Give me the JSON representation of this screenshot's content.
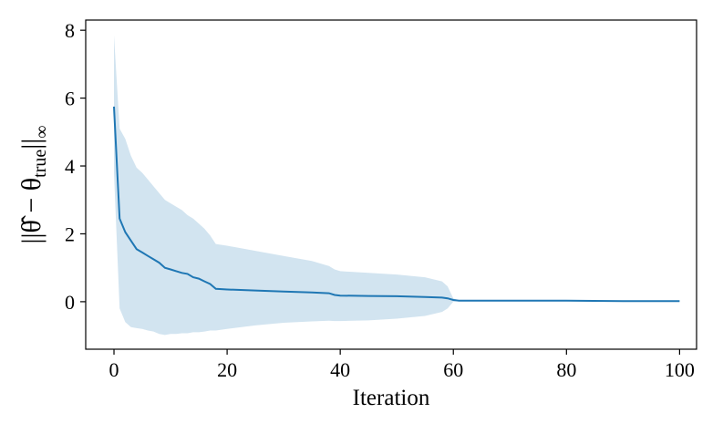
{
  "chart_data": {
    "type": "line",
    "title": "",
    "xlabel": "Iteration",
    "ylabel": {
      "prefix": "||θ̂ − θ",
      "subscript": "true",
      "suffix": "||",
      "norm": "∞"
    },
    "xlim": [
      -5,
      103
    ],
    "ylim": [
      -1.4,
      8.3
    ],
    "xticks": [
      0,
      20,
      40,
      60,
      80,
      100
    ],
    "yticks": [
      0,
      2,
      4,
      6,
      8
    ],
    "grid": false,
    "colors": {
      "line": "#1f77b4",
      "band": "#1f77b4"
    },
    "series": [
      {
        "x": [
          0,
          1,
          2,
          3,
          4,
          5,
          6,
          7,
          8,
          9,
          10,
          11,
          12,
          13,
          14,
          15,
          16,
          17,
          18,
          20,
          25,
          30,
          35,
          38,
          39,
          40,
          45,
          50,
          55,
          58,
          59,
          60,
          61,
          70,
          80,
          90,
          100
        ],
        "mean": [
          5.75,
          2.45,
          2.05,
          1.8,
          1.55,
          1.45,
          1.35,
          1.25,
          1.15,
          1.0,
          0.95,
          0.9,
          0.85,
          0.82,
          0.72,
          0.68,
          0.6,
          0.52,
          0.38,
          0.36,
          0.33,
          0.3,
          0.27,
          0.25,
          0.2,
          0.18,
          0.17,
          0.16,
          0.14,
          0.12,
          0.1,
          0.05,
          0.03,
          0.03,
          0.03,
          0.02,
          0.02
        ],
        "upper": [
          7.85,
          5.1,
          4.8,
          4.3,
          3.95,
          3.8,
          3.6,
          3.4,
          3.2,
          3.0,
          2.9,
          2.8,
          2.7,
          2.55,
          2.45,
          2.3,
          2.15,
          1.95,
          1.7,
          1.65,
          1.5,
          1.35,
          1.2,
          1.05,
          0.95,
          0.9,
          0.85,
          0.8,
          0.72,
          0.6,
          0.45,
          0.1,
          0.04,
          0.03,
          0.03,
          0.02,
          0.02
        ],
        "lower": [
          3.8,
          -0.2,
          -0.6,
          -0.75,
          -0.78,
          -0.8,
          -0.85,
          -0.88,
          -0.95,
          -0.98,
          -0.95,
          -0.95,
          -0.93,
          -0.93,
          -0.9,
          -0.9,
          -0.88,
          -0.85,
          -0.85,
          -0.8,
          -0.7,
          -0.62,
          -0.58,
          -0.56,
          -0.57,
          -0.57,
          -0.55,
          -0.5,
          -0.42,
          -0.3,
          -0.2,
          0.0,
          0.02,
          0.03,
          0.03,
          0.02,
          0.02
        ]
      }
    ]
  }
}
